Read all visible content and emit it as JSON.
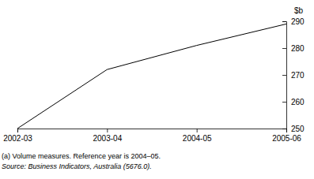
{
  "chart_data": {
    "type": "line",
    "categories": [
      "2002-03",
      "2003-04",
      "2004-05",
      "2005-06"
    ],
    "values": [
      250,
      272,
      281,
      289
    ],
    "color": "#000000",
    "ylabel": "$b",
    "ylim": [
      250,
      290
    ],
    "yticks": [
      250,
      260,
      270,
      280,
      290
    ],
    "grid": false,
    "annotations": [
      "(a) Volume measures. Reference year is 2004–05.",
      "Source: Business Indicators, Australia (5676.0)."
    ]
  }
}
